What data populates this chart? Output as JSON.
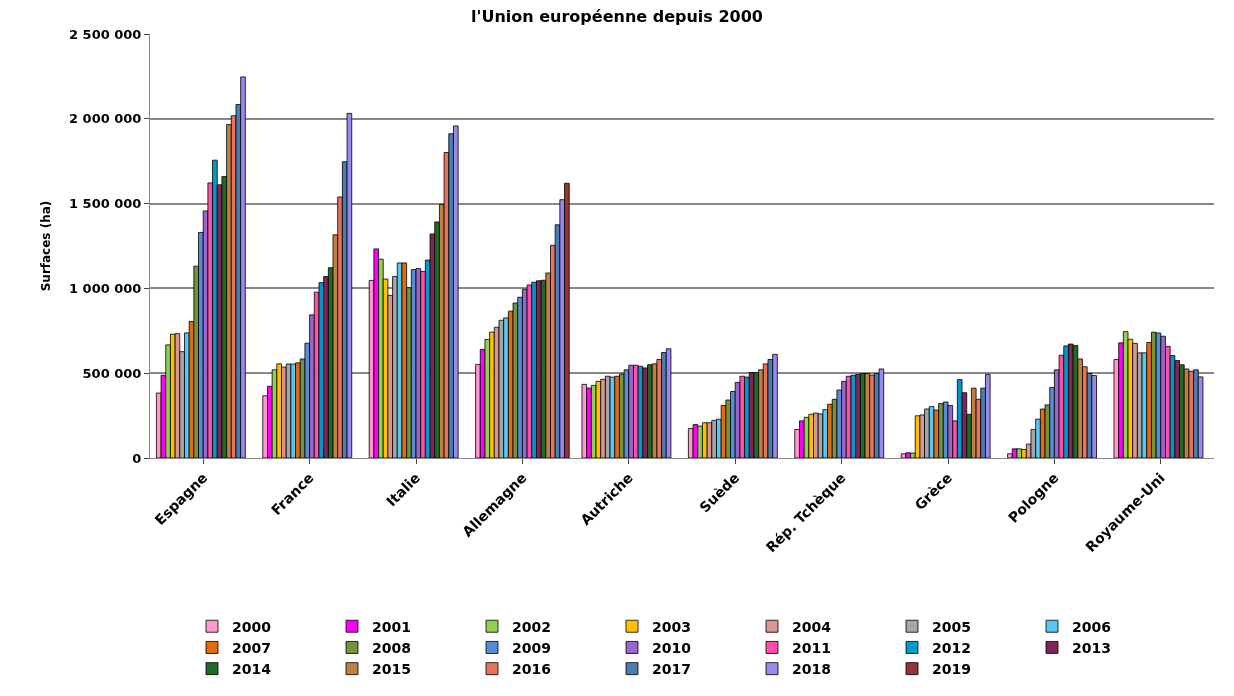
{
  "chart_data": {
    "type": "bar",
    "title": "l'Union européenne depuis 2000",
    "ylabel": "Surfaces (ha)",
    "categories": [
      "Espagne",
      "France",
      "Italie",
      "Allemagne",
      "Autriche",
      "Suède",
      "Rép. Tchèque",
      "Grèce",
      "Pologne",
      "Royaume-Uni"
    ],
    "ylim": [
      0,
      2500000
    ],
    "yticks": [
      {
        "value": 0,
        "label": "0"
      },
      {
        "value": 500000,
        "label": "500 000"
      },
      {
        "value": 1000000,
        "label": "1 000 000"
      },
      {
        "value": 1500000,
        "label": "1 500 000"
      },
      {
        "value": 2000000,
        "label": "2 000 000"
      },
      {
        "value": 2500000,
        "label": "2 500 000"
      }
    ],
    "grid": "y",
    "legend": "bottom",
    "series": [
      {
        "name": "2000",
        "color": "#ff99cc",
        "values": [
          383000,
          367000,
          1047000,
          552000,
          434000,
          174000,
          168000,
          25000,
          25000,
          581000
        ]
      },
      {
        "name": "2001",
        "color": "#ff00ff",
        "values": [
          488000,
          423000,
          1233000,
          640000,
          412000,
          197000,
          219000,
          31000,
          54000,
          679000
        ]
      },
      {
        "name": "2002",
        "color": "#92d050",
        "values": [
          667000,
          520000,
          1172000,
          699000,
          428000,
          188000,
          240000,
          29000,
          54000,
          745000
        ]
      },
      {
        "name": "2003",
        "color": "#ffc000",
        "values": [
          730000,
          555000,
          1055000,
          742000,
          452000,
          208000,
          258000,
          249000,
          50000,
          700000
        ]
      },
      {
        "name": "2004",
        "color": "#da9694",
        "values": [
          733000,
          536000,
          959000,
          771000,
          464000,
          208000,
          265000,
          254000,
          82000,
          676000
        ]
      },
      {
        "name": "2005",
        "color": "#a6a6a6",
        "values": [
          627000,
          554000,
          1070000,
          812000,
          482000,
          222000,
          260000,
          289000,
          169000,
          620000
        ]
      },
      {
        "name": "2006",
        "color": "#55c8f5",
        "values": [
          738000,
          554000,
          1150000,
          826000,
          477000,
          229000,
          285000,
          303000,
          229000,
          620000
        ]
      },
      {
        "name": "2007",
        "color": "#e36c09",
        "values": [
          805000,
          561000,
          1150000,
          866000,
          482000,
          310000,
          317000,
          283000,
          289000,
          681000
        ]
      },
      {
        "name": "2008",
        "color": "#76923c",
        "values": [
          1131000,
          584000,
          1004000,
          914000,
          495000,
          342000,
          346000,
          321000,
          313000,
          742000
        ]
      },
      {
        "name": "2009",
        "color": "#558ed5",
        "values": [
          1330000,
          677000,
          1111000,
          948000,
          520000,
          392000,
          401000,
          330000,
          416000,
          737000
        ]
      },
      {
        "name": "2010",
        "color": "#9966cc",
        "values": [
          1457000,
          844000,
          1117000,
          995000,
          547000,
          446000,
          452000,
          310000,
          520000,
          718000
        ]
      },
      {
        "name": "2011",
        "color": "#ff4fa8",
        "values": [
          1622000,
          978000,
          1100000,
          1020000,
          547000,
          482000,
          482000,
          219000,
          606000,
          658000
        ]
      },
      {
        "name": "2012",
        "color": "#0099cc",
        "values": [
          1756000,
          1034000,
          1167000,
          1036000,
          541000,
          477000,
          488000,
          462000,
          661000,
          604000
        ]
      },
      {
        "name": "2013",
        "color": "#7f2557",
        "values": [
          1611000,
          1070000,
          1321000,
          1045000,
          531000,
          504000,
          493000,
          385000,
          672000,
          575000
        ]
      },
      {
        "name": "2014",
        "color": "#1e6b24",
        "values": [
          1660000,
          1122000,
          1392000,
          1048000,
          550000,
          504000,
          498000,
          258000,
          663000,
          550000
        ]
      },
      {
        "name": "2015",
        "color": "#c0803f",
        "values": [
          1966000,
          1316000,
          1495000,
          1091000,
          555000,
          520000,
          498000,
          412000,
          584000,
          525000
        ]
      },
      {
        "name": "2016",
        "color": "#e6735a",
        "values": [
          2018000,
          1539000,
          1801000,
          1254000,
          581000,
          555000,
          489000,
          346000,
          538000,
          511000
        ]
      },
      {
        "name": "2017",
        "color": "#4a7eb0",
        "values": [
          2084000,
          1747000,
          1912000,
          1375000,
          622000,
          581000,
          498000,
          412000,
          498000,
          520000
        ]
      },
      {
        "name": "2018",
        "color": "#9988ee",
        "values": [
          2247000,
          2032000,
          1958000,
          1523000,
          644000,
          611000,
          525000,
          493000,
          486000,
          478000
        ]
      },
      {
        "name": "2019",
        "color": "#993333",
        "values": [
          null,
          null,
          null,
          1620000,
          null,
          null,
          null,
          null,
          null,
          null
        ]
      }
    ]
  }
}
